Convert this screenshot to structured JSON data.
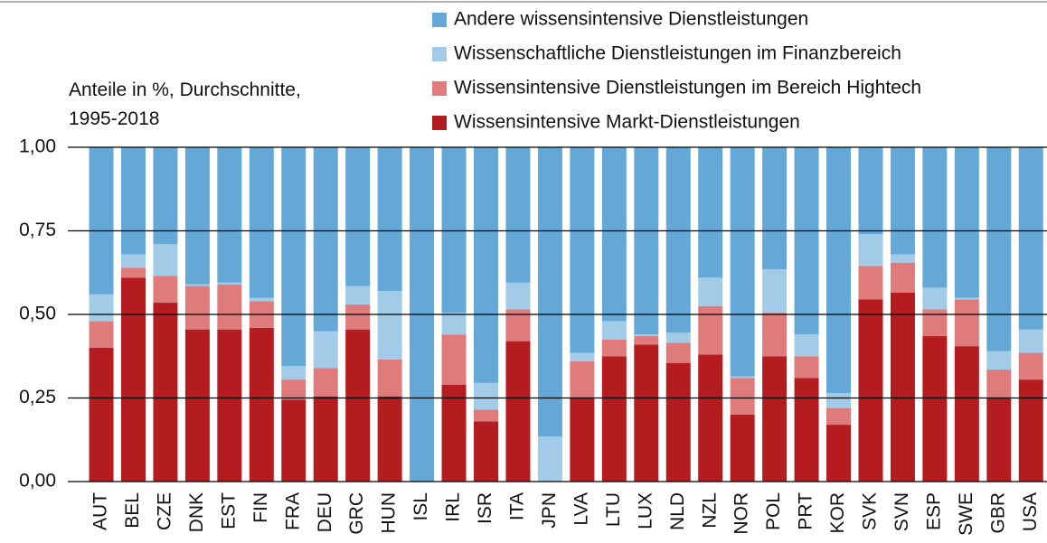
{
  "chart_data": {
    "type": "stacked_bar",
    "subtitle": "Anteile in %, Durchschnitte, 1995-2018",
    "categories": [
      "AUT",
      "BEL",
      "CZE",
      "DNK",
      "EST",
      "FIN",
      "FRA",
      "DEU",
      "GRC",
      "HUN",
      "ISL",
      "IRL",
      "ISR",
      "ITA",
      "JPN",
      "LVA",
      "LTU",
      "LUX",
      "NLD",
      "NZL",
      "NOR",
      "POL",
      "PRT",
      "KOR",
      "SVK",
      "SVN",
      "ESP",
      "SWE",
      "GBR",
      "USA"
    ],
    "series": [
      {
        "name": "Wissensintensive Markt-Dienstleistungen",
        "color": "#b51c1f",
        "values": [
          0.4,
          0.61,
          0.535,
          0.455,
          0.455,
          0.46,
          0.245,
          0.255,
          0.455,
          0.255,
          0,
          0.29,
          0.18,
          0.42,
          0,
          0.25,
          0.375,
          0.41,
          0.355,
          0.38,
          0.2,
          0.375,
          0.31,
          0.17,
          0.545,
          0.565,
          0.435,
          0.405,
          0.25,
          0.305
        ]
      },
      {
        "name": "Wissensintensive Dienstleistungen im Bereich Hightech",
        "color": "#e07b7b",
        "values": [
          0.08,
          0.03,
          0.08,
          0.13,
          0.135,
          0.08,
          0.06,
          0.085,
          0.075,
          0.11,
          0,
          0.15,
          0.035,
          0.095,
          0,
          0.11,
          0.05,
          0.025,
          0.06,
          0.145,
          0.11,
          0.13,
          0.065,
          0.05,
          0.1,
          0.09,
          0.08,
          0.14,
          0.085,
          0.08
        ]
      },
      {
        "name": "Wissenschaftliche Dienstleistungen im Finanzbereich",
        "color": "#a2cbe8",
        "values": [
          0.08,
          0.04,
          0.095,
          0.005,
          0.005,
          0.01,
          0.04,
          0.11,
          0.055,
          0.205,
          0,
          0.065,
          0.08,
          0.08,
          0.135,
          0.025,
          0.055,
          0.005,
          0.03,
          0.085,
          0.005,
          0.13,
          0.065,
          0.045,
          0.095,
          0.025,
          0.065,
          0.005,
          0.055,
          0.07
        ]
      },
      {
        "name": "Andere wissensintensive Dienstleistungen",
        "color": "#63a8d6",
        "values": [
          0.44,
          0.32,
          0.29,
          0.41,
          0.405,
          0.45,
          0.655,
          0.55,
          0.415,
          0.43,
          1.0,
          0.495,
          0.705,
          0.405,
          0.865,
          0.615,
          0.52,
          0.56,
          0.555,
          0.39,
          0.685,
          0.365,
          0.56,
          0.735,
          0.26,
          0.32,
          0.42,
          0.45,
          0.61,
          0.545
        ]
      }
    ],
    "ylim": [
      0,
      1
    ],
    "yticks": [
      {
        "value": 0,
        "label": "0,00"
      },
      {
        "value": 0.25,
        "label": "0,25"
      },
      {
        "value": 0.5,
        "label": "0,50"
      },
      {
        "value": 0.75,
        "label": "0,75"
      },
      {
        "value": 1,
        "label": "1,00"
      }
    ],
    "grid": true
  }
}
